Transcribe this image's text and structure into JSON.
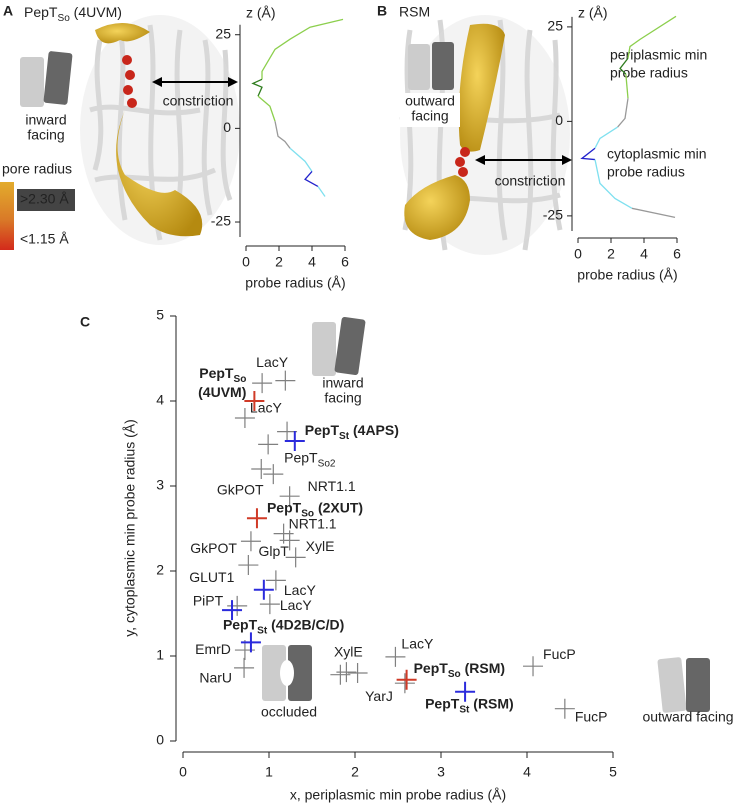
{
  "chart_data": [
    {
      "type": "line",
      "panel": "A",
      "title": [
        "PepT",
        "So",
        " (4UVM)"
      ],
      "state": [
        "inward",
        "facing"
      ],
      "annotation": "constriction",
      "legend_title": "pore radius",
      "legend_items": [
        ">2.30 Å",
        "<1.15 Å"
      ],
      "legend_text_colors": [
        "#f0c040",
        "#d42a1c"
      ],
      "x_label": "probe radius (Å)",
      "y_label": "z (Å)",
      "xlim": [
        0,
        6
      ],
      "ylim": [
        -29,
        30
      ],
      "xticks": [
        0,
        2,
        4,
        6
      ],
      "yticks": [
        -25,
        0,
        25
      ],
      "series": [
        {
          "color": "#8ccf4d",
          "x": [
            5.88,
            3.88,
            2.67,
            1.76,
            1.33,
            0.97,
            0.97
          ],
          "values": [
            29.1,
            27.0,
            23.8,
            21.1,
            17.9,
            15.2,
            13.1
          ]
        },
        {
          "color": "#2f7d1f",
          "x": [
            0.97,
            0.42,
            0.97,
            0.73
          ],
          "values": [
            13.1,
            12.0,
            11.0,
            8.6
          ]
        },
        {
          "color": "#8ccf4d",
          "x": [
            0.73,
            1.45,
            1.76
          ],
          "values": [
            8.6,
            5.9,
            1.9
          ]
        },
        {
          "color": "#999999",
          "x": [
            1.76,
            1.94,
            2.36,
            2.67
          ],
          "values": [
            1.9,
            -2.1,
            -3.5,
            -5.3
          ]
        },
        {
          "color": "#7fe0ef",
          "x": [
            2.67,
            3.58,
            4.0
          ],
          "values": [
            -5.3,
            -8.8,
            -11.5
          ]
        },
        {
          "color": "#2222cc",
          "x": [
            4.0,
            3.58,
            4.36
          ],
          "values": [
            -11.5,
            -13.6,
            -15.5
          ]
        },
        {
          "color": "#7fe0ef",
          "x": [
            4.36,
            4.79
          ],
          "values": [
            -15.5,
            -18.2
          ]
        }
      ]
    },
    {
      "type": "line",
      "panel": "B",
      "title": "RSM",
      "state": [
        "outward",
        "facing"
      ],
      "annotation": "constriction",
      "periplasmic_label": [
        "periplasmic min",
        "probe radius"
      ],
      "cytoplasmic_label": [
        "cytoplasmic min",
        "probe radius"
      ],
      "periplasmic_color": "#8ccf4d",
      "cytoplasmic_color": "#5fa9a9",
      "x_label": "probe radius (Å)",
      "y_label": "z (Å)",
      "xlim": [
        0,
        6
      ],
      "ylim": [
        -29,
        30
      ],
      "xticks": [
        0,
        2,
        4,
        6
      ],
      "yticks": [
        -25,
        0,
        25
      ],
      "series": [
        {
          "color": "#8ccf4d",
          "x": [
            5.94,
            3.76,
            3.15,
            3.03
          ],
          "values": [
            27.8,
            21.7,
            19.8,
            16.7
          ]
        },
        {
          "color": "#2f7d1f",
          "x": [
            3.03,
            2.55,
            2.9
          ],
          "values": [
            16.7,
            14.0,
            12.5
          ]
        },
        {
          "color": "#8ccf4d",
          "x": [
            2.9,
            3.03
          ],
          "values": [
            12.5,
            6.1
          ]
        },
        {
          "color": "#999999",
          "x": [
            3.03,
            2.85,
            2.4
          ],
          "values": [
            6.1,
            0.8,
            -1.5
          ]
        },
        {
          "color": "#7fe0ef",
          "x": [
            2.4,
            1.33,
            1.03
          ],
          "values": [
            -1.5,
            -4.5,
            -7.1
          ]
        },
        {
          "color": "#2222cc",
          "x": [
            1.03,
            0.24,
            1.03
          ],
          "values": [
            -7.1,
            -9.8,
            -10.1
          ]
        },
        {
          "color": "#7fe0ef",
          "x": [
            1.03,
            1.33,
            2.24,
            3.27
          ],
          "values": [
            -10.1,
            -16.4,
            -20.4,
            -23
          ]
        },
        {
          "color": "#999999",
          "x": [
            3.27,
            5.88
          ],
          "values": [
            -23,
            -25.4
          ]
        }
      ]
    },
    {
      "type": "scatter",
      "panel": "C",
      "x_label": "x, periplasmic min probe radius (Å)",
      "y_label": "y, cytoplasmic min probe radius (Å)",
      "x_label_color": "#8cc152",
      "y_label_color": "#5fa9a9",
      "state_inward": [
        "inward",
        "facing"
      ],
      "state_occluded": "occluded",
      "state_outward": "outward facing",
      "xlim": [
        0,
        5
      ],
      "ylim": [
        0,
        5
      ],
      "xticks": [
        0,
        1,
        2,
        3,
        4,
        5
      ],
      "yticks": [
        0,
        1,
        2,
        3,
        4,
        5
      ],
      "series": [
        {
          "color": "#808080",
          "x": [
            0.92,
            1.19,
            0.72,
            1.21,
            0.99,
            0.91,
            1.05,
            1.24,
            1.17,
            1.24,
            0.79,
            1.31,
            0.76,
            1.08,
            1.01,
            0.63,
            0.72,
            0.71,
            1.83,
            1.9,
            2.03,
            2.47,
            2.58,
            4.07,
            4.44
          ],
          "values": [
            4.21,
            4.24,
            3.8,
            3.64,
            3.49,
            3.2,
            3.14,
            2.88,
            2.44,
            2.36,
            2.35,
            2.16,
            2.07,
            1.89,
            1.61,
            1.59,
            1.07,
            0.86,
            0.78,
            0.81,
            0.8,
            0.99,
            0.68,
            0.88,
            0.38
          ],
          "labels": [
            "LacY",
            null,
            "LacY",
            null,
            [
              "PepT",
              "So2"
            ],
            "GkPOT",
            null,
            "NRT1.1",
            "NRT1.1",
            "GlpT",
            "GkPOT",
            "XylE",
            "GLUT1",
            "LacY",
            "LacY",
            "PiPT",
            "EmrD",
            "NarU",
            "XylE",
            null,
            null,
            "LacY",
            "YarJ",
            "FucP",
            "FucP"
          ]
        },
        {
          "color": "#d03a27",
          "x": [
            0.83,
            0.86,
            2.6
          ],
          "values": [
            4.0,
            2.62,
            0.72
          ],
          "labels": [
            [
              "PepT",
              "So",
              "(4UVM)"
            ],
            [
              "PepT",
              "So",
              " (2XUT)"
            ],
            [
              "PepT",
              "So",
              " (RSM)"
            ]
          ]
        },
        {
          "color": "#2b2bdc",
          "x": [
            1.3,
            0.94,
            0.57,
            0.79,
            3.28
          ],
          "values": [
            3.53,
            1.78,
            1.54,
            1.16,
            0.58
          ],
          "labels": [
            [
              "PepT",
              "St",
              " (4APS)"
            ],
            null,
            null,
            [
              "PepT",
              "St",
              " (4D2B/C/D)"
            ],
            [
              "PepT",
              "St",
              " (RSM)"
            ]
          ]
        }
      ]
    }
  ]
}
